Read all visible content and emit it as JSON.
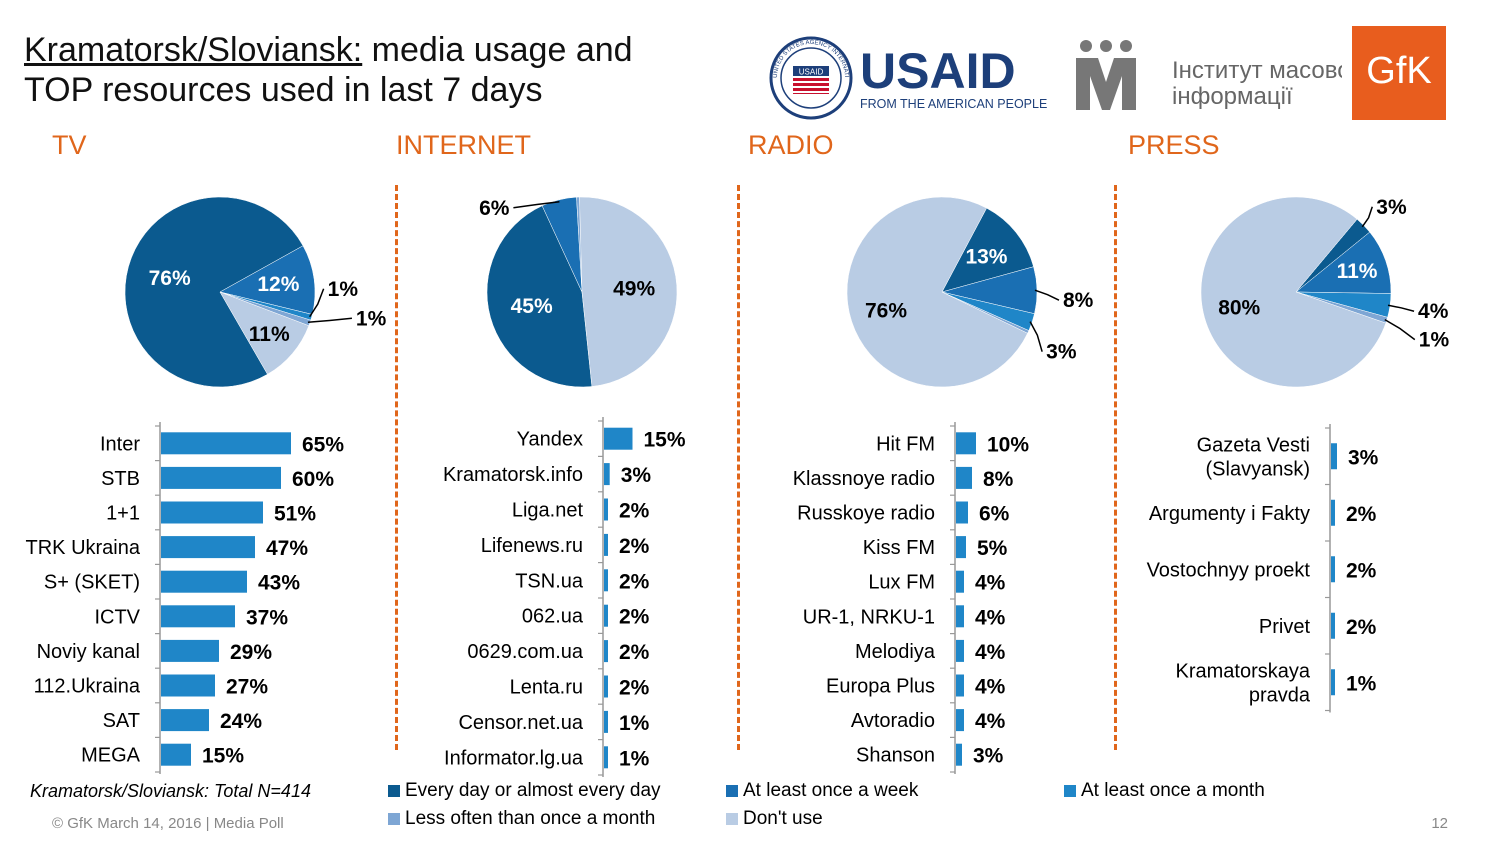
{
  "header": {
    "title_underlined": "Kramatorsk/Sloviansk:",
    "title_rest_line1": " media usage and",
    "title_line2": "TOP resources used in last 7 days"
  },
  "logos": {
    "usaid_seal_text": "UNITED STATES AGENCY INTERNATIONAL DEVELOPMENT",
    "usaid_seal_center": "USAID",
    "usaid_word": "USAID",
    "usaid_tagline": "FROM THE AMERICAN PEOPLE",
    "imi_line1": "Інститут масової",
    "imi_line2": "інформації",
    "gfk": "GfK"
  },
  "colors": {
    "every_day": "#0b5a8f",
    "weekly": "#1a6fb3",
    "monthly": "#1f86c8",
    "less_often": "#7ea6d4",
    "dont_use": "#b9cce4",
    "bar": "#1f86c8",
    "accent": "#e0661b"
  },
  "legend": [
    {
      "label": "Every day or almost every day",
      "color": "#0b5a8f"
    },
    {
      "label": "At least once a week",
      "color": "#1a6fb3"
    },
    {
      "label": "At least once a month",
      "color": "#1f86c8"
    },
    {
      "label": "Less often than once a month",
      "color": "#7ea6d4"
    },
    {
      "label": "Don't use",
      "color": "#b9cce4"
    }
  ],
  "note": "Kramatorsk/Sloviansk: Total N=414",
  "footer": "© GfK March 14, 2016 | Media Poll",
  "page_number": "12",
  "chart_data": [
    {
      "type": "pie",
      "title": "TV",
      "labels": [
        "Every day or almost every day",
        "At least once a week",
        "At least once a month",
        "Less often than once a month",
        "Don't use"
      ],
      "values": [
        76,
        12,
        1,
        1,
        11
      ],
      "value_labels": [
        "76%",
        "12%",
        "1%",
        "1%",
        "11%"
      ]
    },
    {
      "type": "bar",
      "title": "TV",
      "categories": [
        "Inter",
        "STB",
        "1+1",
        "TRK Ukraina",
        "S+ (SKET)",
        "ICTV",
        "Noviy kanal",
        "112.Ukraina",
        "SAT",
        "MEGA"
      ],
      "values": [
        65,
        60,
        51,
        47,
        43,
        37,
        29,
        27,
        24,
        15
      ],
      "value_labels": [
        "65%",
        "60%",
        "51%",
        "47%",
        "43%",
        "37%",
        "29%",
        "27%",
        "24%",
        "15%"
      ]
    },
    {
      "type": "pie",
      "title": "INTERNET",
      "labels": [
        "Every day or almost every day",
        "At least once a week",
        "At least once a month",
        "Less often than once a month",
        "Don't use"
      ],
      "values": [
        45,
        6,
        0,
        0.5,
        49
      ],
      "value_labels": [
        "45%",
        "6%",
        "",
        "",
        "49%"
      ]
    },
    {
      "type": "bar",
      "title": "INTERNET",
      "categories": [
        "Yandex",
        "Kramatorsk.info",
        "Liga.net",
        "Lifenews.ru",
        "TSN.ua",
        "062.ua",
        "0629.com.ua",
        "Lenta.ru",
        "Censor.net.ua",
        "Informator.lg.ua"
      ],
      "values": [
        15,
        3,
        2,
        2,
        2,
        2,
        2,
        2,
        1,
        1
      ],
      "value_labels": [
        "15%",
        "3%",
        "2%",
        "2%",
        "2%",
        "2%",
        "2%",
        "2%",
        "1%",
        "1%"
      ]
    },
    {
      "type": "pie",
      "title": "RADIO",
      "labels": [
        "Every day or almost every day",
        "At least once a week",
        "At least once a month",
        "Less often than once a month",
        "Don't use"
      ],
      "values": [
        13,
        8,
        3,
        0.5,
        76
      ],
      "value_labels": [
        "13%",
        "8%",
        "3%",
        "",
        "76%"
      ]
    },
    {
      "type": "bar",
      "title": "RADIO",
      "categories": [
        "Hit FM",
        "Klassnoye radio",
        "Russkoye radio",
        "Kiss FM",
        "Lux FM",
        "UR-1, NRKU-1",
        "Melodiya",
        "Europa Plus",
        "Avtoradio",
        "Shanson"
      ],
      "values": [
        10,
        8,
        6,
        5,
        4,
        4,
        4,
        4,
        4,
        3
      ],
      "value_labels": [
        "10%",
        "8%",
        "6%",
        "5%",
        "4%",
        "4%",
        "4%",
        "4%",
        "4%",
        "3%"
      ]
    },
    {
      "type": "pie",
      "title": "PRESS",
      "labels": [
        "Every day or almost every day",
        "At least once a week",
        "At least once a month",
        "Less often than once a month",
        "Don't use"
      ],
      "values": [
        3,
        11,
        4,
        1,
        80
      ],
      "value_labels": [
        "3%",
        "11%",
        "4%",
        "1%",
        "80%"
      ]
    },
    {
      "type": "bar",
      "title": "PRESS",
      "categories": [
        "Gazeta Vesti (Slavyansk)",
        "Argumenty i Fakty",
        "Vostochnyy proekt",
        "Privet",
        "Kramatorskaya pravda"
      ],
      "category_lines": [
        [
          "Gazeta Vesti",
          "(Slavyansk)"
        ],
        [
          "Argumenty i Fakty"
        ],
        [
          "Vostochnyy proekt"
        ],
        [
          "Privet"
        ],
        [
          "Kramatorskaya",
          "pravda"
        ]
      ],
      "values": [
        3,
        2,
        2,
        2,
        1
      ],
      "value_labels": [
        "3%",
        "2%",
        "2%",
        "2%",
        "1%"
      ]
    }
  ]
}
